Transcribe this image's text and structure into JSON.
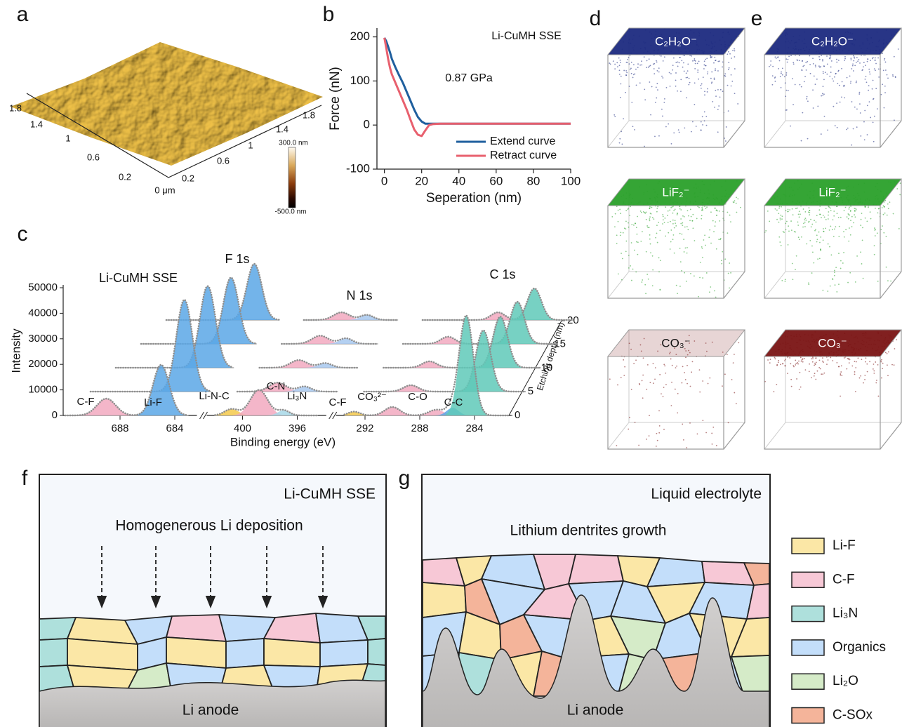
{
  "panel_labels": [
    "a",
    "b",
    "c",
    "d",
    "e",
    "f",
    "g"
  ],
  "afm": {
    "axis1_ticks": [
      "1.8",
      "1.4",
      "1",
      "0.6",
      "0.2",
      "0 μm"
    ],
    "axis2_ticks": [
      "0.2",
      "0.6",
      "1",
      "1.4",
      "1.8"
    ],
    "colorbar_max": "300.0 nm",
    "colorbar_min": "-500.0 nm"
  },
  "chart_data": [
    {
      "type": "line",
      "annotations": [
        "Li-CuMH SSE",
        "0.87 GPa"
      ],
      "xlabel": "Seperation (nm)",
      "ylabel": "Force (nN)",
      "x": [
        0,
        1,
        2,
        3,
        4,
        6,
        8,
        10,
        12,
        14,
        16,
        18,
        20,
        22,
        24,
        26,
        30,
        40,
        50,
        60,
        70,
        80,
        90,
        100
      ],
      "xlim": [
        -4,
        100
      ],
      "ylim": [
        -100,
        220
      ],
      "xticks": [
        0,
        20,
        40,
        60,
        80,
        100
      ],
      "yticks": [
        -100,
        0,
        100,
        200
      ],
      "legend": "lower right",
      "series": [
        {
          "name": "Extend curve",
          "color": "#1f5f9e",
          "values": [
            198,
            190,
            178,
            165,
            150,
            130,
            112,
            95,
            75,
            55,
            35,
            18,
            8,
            3,
            3,
            3,
            3,
            3,
            3,
            3,
            3,
            3,
            3,
            3
          ]
        },
        {
          "name": "Retract curve",
          "color": "#e8606e",
          "values": [
            198,
            175,
            150,
            130,
            115,
            95,
            75,
            55,
            35,
            12,
            -10,
            -22,
            -25,
            -12,
            0,
            2,
            3,
            3,
            3,
            3,
            3,
            3,
            3,
            3
          ]
        }
      ]
    },
    {
      "type": "waterfall",
      "title": "Li-CuMH SSE",
      "region_labels": [
        "F 1s",
        "N 1s",
        "C 1s"
      ],
      "xlabel": "Binding energy (eV)",
      "ylabel": "Intensity",
      "zlabel": "Etching depth (nm)",
      "x_segments": [
        [
          692,
          683
        ],
        [
          402,
          394.5
        ],
        [
          293.5,
          281.5
        ]
      ],
      "xticks": [
        688,
        684,
        400,
        396,
        292,
        288,
        284
      ],
      "ylim": [
        0,
        50000
      ],
      "yticks": [
        0,
        10000,
        20000,
        30000,
        40000,
        50000
      ],
      "zticks": [
        0,
        5,
        10,
        15,
        20
      ],
      "series": [
        {
          "depth": 0,
          "peaks": [
            {
              "label": "C-F",
              "center": 689,
              "height": 6600,
              "fwhm": 1.6,
              "color": "#f2a9c0"
            },
            {
              "label": "Li-F",
              "center": 685,
              "height": 19800,
              "fwhm": 1.4,
              "color": "#5aa7e6"
            },
            {
              "label": "Li-N-C",
              "center": 400.8,
              "height": 2500,
              "fwhm": 1.2,
              "color": "#f5c94a"
            },
            {
              "label": "C-N",
              "center": 398.8,
              "height": 10000,
              "fwhm": 1.5,
              "color": "#f2a9c0"
            },
            {
              "label": "Li₃N",
              "center": 397,
              "height": 2000,
              "fwhm": 1.0,
              "color": "#a7d8e8"
            },
            {
              "label": "C-F",
              "center": 292.8,
              "height": 1500,
              "fwhm": 1.0,
              "color": "#f5c94a"
            },
            {
              "label": "CO₃²⁻",
              "center": 290,
              "height": 3300,
              "fwhm": 1.3,
              "color": "#f2a9c0"
            },
            {
              "label": "C-O",
              "center": 286.8,
              "height": 2200,
              "fwhm": 1.3,
              "color": "#f2a9c0"
            },
            {
              "center": 285.6,
              "height": 3000,
              "fwhm": 1.0,
              "color": "#5aa7e6"
            },
            {
              "label": "C-C",
              "center": 284.6,
              "height": 39000,
              "fwhm": 1.2,
              "color": "#5fc9b8"
            }
          ]
        },
        {
          "depth": 5,
          "peaks": [
            {
              "center": 685,
              "height": 36000,
              "fwhm": 1.4,
              "color": "#5aa7e6"
            },
            {
              "center": 399,
              "height": 3500,
              "fwhm": 1.5,
              "color": "#f2a9c0"
            },
            {
              "center": 397,
              "height": 2000,
              "fwhm": 1.2,
              "color": "#a7c8ee"
            },
            {
              "center": 290,
              "height": 2500,
              "fwhm": 1.3,
              "color": "#f2a9c0"
            },
            {
              "center": 284.6,
              "height": 24000,
              "fwhm": 1.3,
              "color": "#5fc9b8"
            }
          ]
        },
        {
          "depth": 10,
          "peaks": [
            {
              "center": 685,
              "height": 32000,
              "fwhm": 1.4,
              "color": "#5aa7e6"
            },
            {
              "center": 399,
              "height": 3000,
              "fwhm": 1.5,
              "color": "#f2a9c0"
            },
            {
              "center": 397,
              "height": 1800,
              "fwhm": 1.2,
              "color": "#a7c8ee"
            },
            {
              "center": 290,
              "height": 2500,
              "fwhm": 1.3,
              "color": "#f2a9c0"
            },
            {
              "center": 284.6,
              "height": 20000,
              "fwhm": 1.3,
              "color": "#5fc9b8"
            }
          ]
        },
        {
          "depth": 15,
          "peaks": [
            {
              "center": 685,
              "height": 26000,
              "fwhm": 1.4,
              "color": "#5aa7e6"
            },
            {
              "center": 399,
              "height": 3200,
              "fwhm": 1.5,
              "color": "#f2a9c0"
            },
            {
              "center": 397,
              "height": 2200,
              "fwhm": 1.2,
              "color": "#a7c8ee"
            },
            {
              "center": 290,
              "height": 2800,
              "fwhm": 1.3,
              "color": "#f2a9c0"
            },
            {
              "center": 284.6,
              "height": 16500,
              "fwhm": 1.3,
              "color": "#5fc9b8"
            }
          ]
        },
        {
          "depth": 20,
          "peaks": [
            {
              "center": 685,
              "height": 22000,
              "fwhm": 1.4,
              "color": "#5aa7e6"
            },
            {
              "center": 399,
              "height": 3000,
              "fwhm": 1.5,
              "color": "#f2a9c0"
            },
            {
              "center": 397,
              "height": 2000,
              "fwhm": 1.2,
              "color": "#a7c8ee"
            },
            {
              "center": 287.5,
              "height": 3000,
              "fwhm": 1.3,
              "color": "#f2a9c0"
            },
            {
              "center": 284.6,
              "height": 12400,
              "fwhm": 1.3,
              "color": "#5fc9b8"
            }
          ]
        }
      ]
    }
  ],
  "tof_sims": {
    "colors": [
      "#1c2a80",
      "#2aa02a",
      "#7a1414"
    ],
    "d": [
      "C₂H₂O⁻",
      "LiF₂⁻",
      "CO₃⁻"
    ],
    "e": [
      "C₂H₂O⁻",
      "LiF₂⁻",
      "CO₃⁻"
    ]
  },
  "panel_f": {
    "label": "Li-CuMH SSE",
    "title": "Homogenerous Li deposition",
    "anode": "Li anode"
  },
  "panel_g": {
    "label": "Liquid electrolyte",
    "title": "Lithium dentrites growth",
    "anode": "Li anode"
  },
  "legend": [
    {
      "label": "Li-F",
      "color": "#fbe7a6"
    },
    {
      "label": "C-F",
      "color": "#f7c8d6"
    },
    {
      "label": "Li₃N",
      "color": "#aee0dc"
    },
    {
      "label": "Organics",
      "color": "#c3defa"
    },
    {
      "label": "Li₂O",
      "color": "#d5ebc8"
    },
    {
      "label": "C-SOx",
      "color": "#f4b49a"
    }
  ]
}
